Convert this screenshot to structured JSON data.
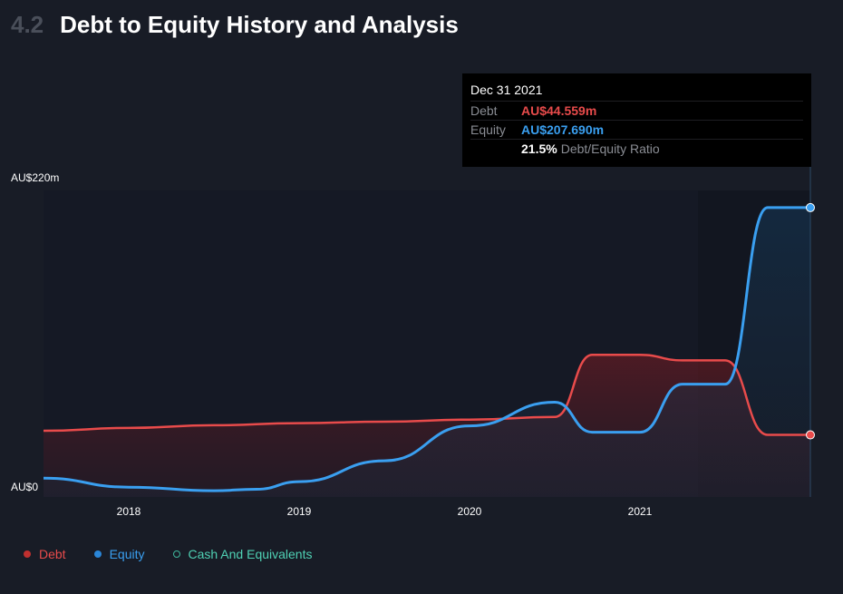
{
  "header": {
    "section_number": "4.2",
    "title": "Debt to Equity History and Analysis"
  },
  "tooltip": {
    "date": "Dec 31 2021",
    "debt_label": "Debt",
    "debt_value": "AU$44.559m",
    "equity_label": "Equity",
    "equity_value": "AU$207.690m",
    "ratio_value": "21.5%",
    "ratio_label": "Debt/Equity Ratio"
  },
  "legend": {
    "items": [
      {
        "label": "Debt",
        "color": "#e84b4b"
      },
      {
        "label": "Equity",
        "color": "#3a9ff0"
      },
      {
        "label": "Cash And Equivalents",
        "color": "#4fd1b4"
      }
    ]
  },
  "colors": {
    "debt": "#e84b4b",
    "equity": "#3a9ff0",
    "cash": "#4fd1b4",
    "background": "#181c26"
  },
  "chart_data": {
    "type": "area",
    "ylim": [
      0,
      220
    ],
    "yticks": [
      {
        "value": 220,
        "label": "AU$220m"
      },
      {
        "value": 0,
        "label": "AU$0"
      }
    ],
    "xlim": [
      2017.5,
      2022.0
    ],
    "xticks": [
      {
        "value": 2018,
        "label": "2018"
      },
      {
        "value": 2019,
        "label": "2019"
      },
      {
        "value": 2020,
        "label": "2020"
      },
      {
        "value": 2021,
        "label": "2021"
      }
    ],
    "series": [
      {
        "name": "Debt",
        "points": [
          [
            2017.5,
            47.5
          ],
          [
            2018.0,
            49.5
          ],
          [
            2018.5,
            51.5
          ],
          [
            2019.0,
            53
          ],
          [
            2019.5,
            54
          ],
          [
            2020.0,
            55.5
          ],
          [
            2020.5,
            57.5
          ],
          [
            2020.72,
            102
          ],
          [
            2021.0,
            102
          ],
          [
            2021.25,
            98
          ],
          [
            2021.5,
            98
          ],
          [
            2021.75,
            44.559
          ],
          [
            2022.0,
            44.559
          ]
        ]
      },
      {
        "name": "Equity",
        "points": [
          [
            2017.5,
            13.5
          ],
          [
            2018.0,
            7
          ],
          [
            2018.5,
            4.5
          ],
          [
            2018.75,
            5.5
          ],
          [
            2019.0,
            11
          ],
          [
            2019.5,
            26
          ],
          [
            2020.0,
            51
          ],
          [
            2020.5,
            68
          ],
          [
            2020.72,
            46.5
          ],
          [
            2021.0,
            46.5
          ],
          [
            2021.25,
            81
          ],
          [
            2021.5,
            81
          ],
          [
            2021.75,
            207.69
          ],
          [
            2022.0,
            207.69
          ]
        ]
      },
      {
        "name": "Cash And Equivalents",
        "points": []
      }
    ]
  }
}
